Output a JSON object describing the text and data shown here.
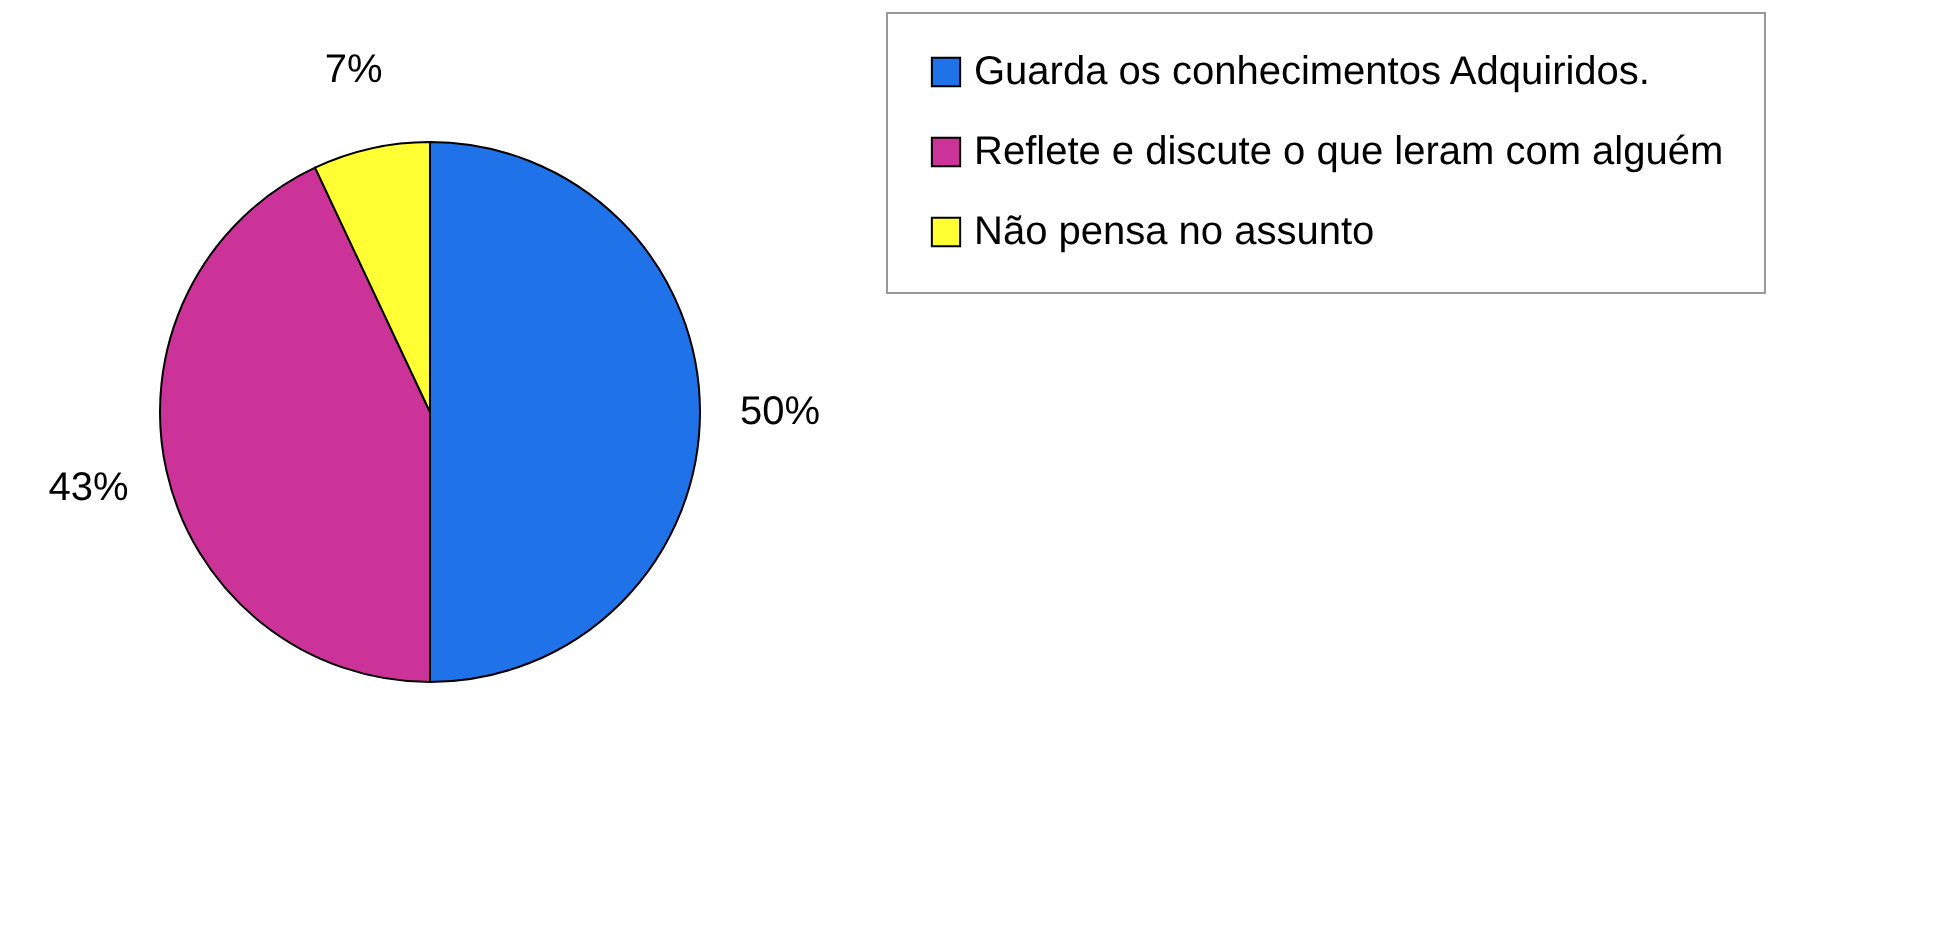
{
  "chart_data": {
    "type": "pie",
    "categories": [
      "Guarda os conhecimentos Adquiridos.",
      "Reflete e discute o que leram com alguém",
      "Não pensa no assunto"
    ],
    "values": [
      50,
      43,
      7
    ],
    "colors": [
      "#1f72e8",
      "#cc3399",
      "#ffff33"
    ],
    "value_labels": [
      "50%",
      "43%",
      "7%"
    ],
    "legend": "right"
  }
}
